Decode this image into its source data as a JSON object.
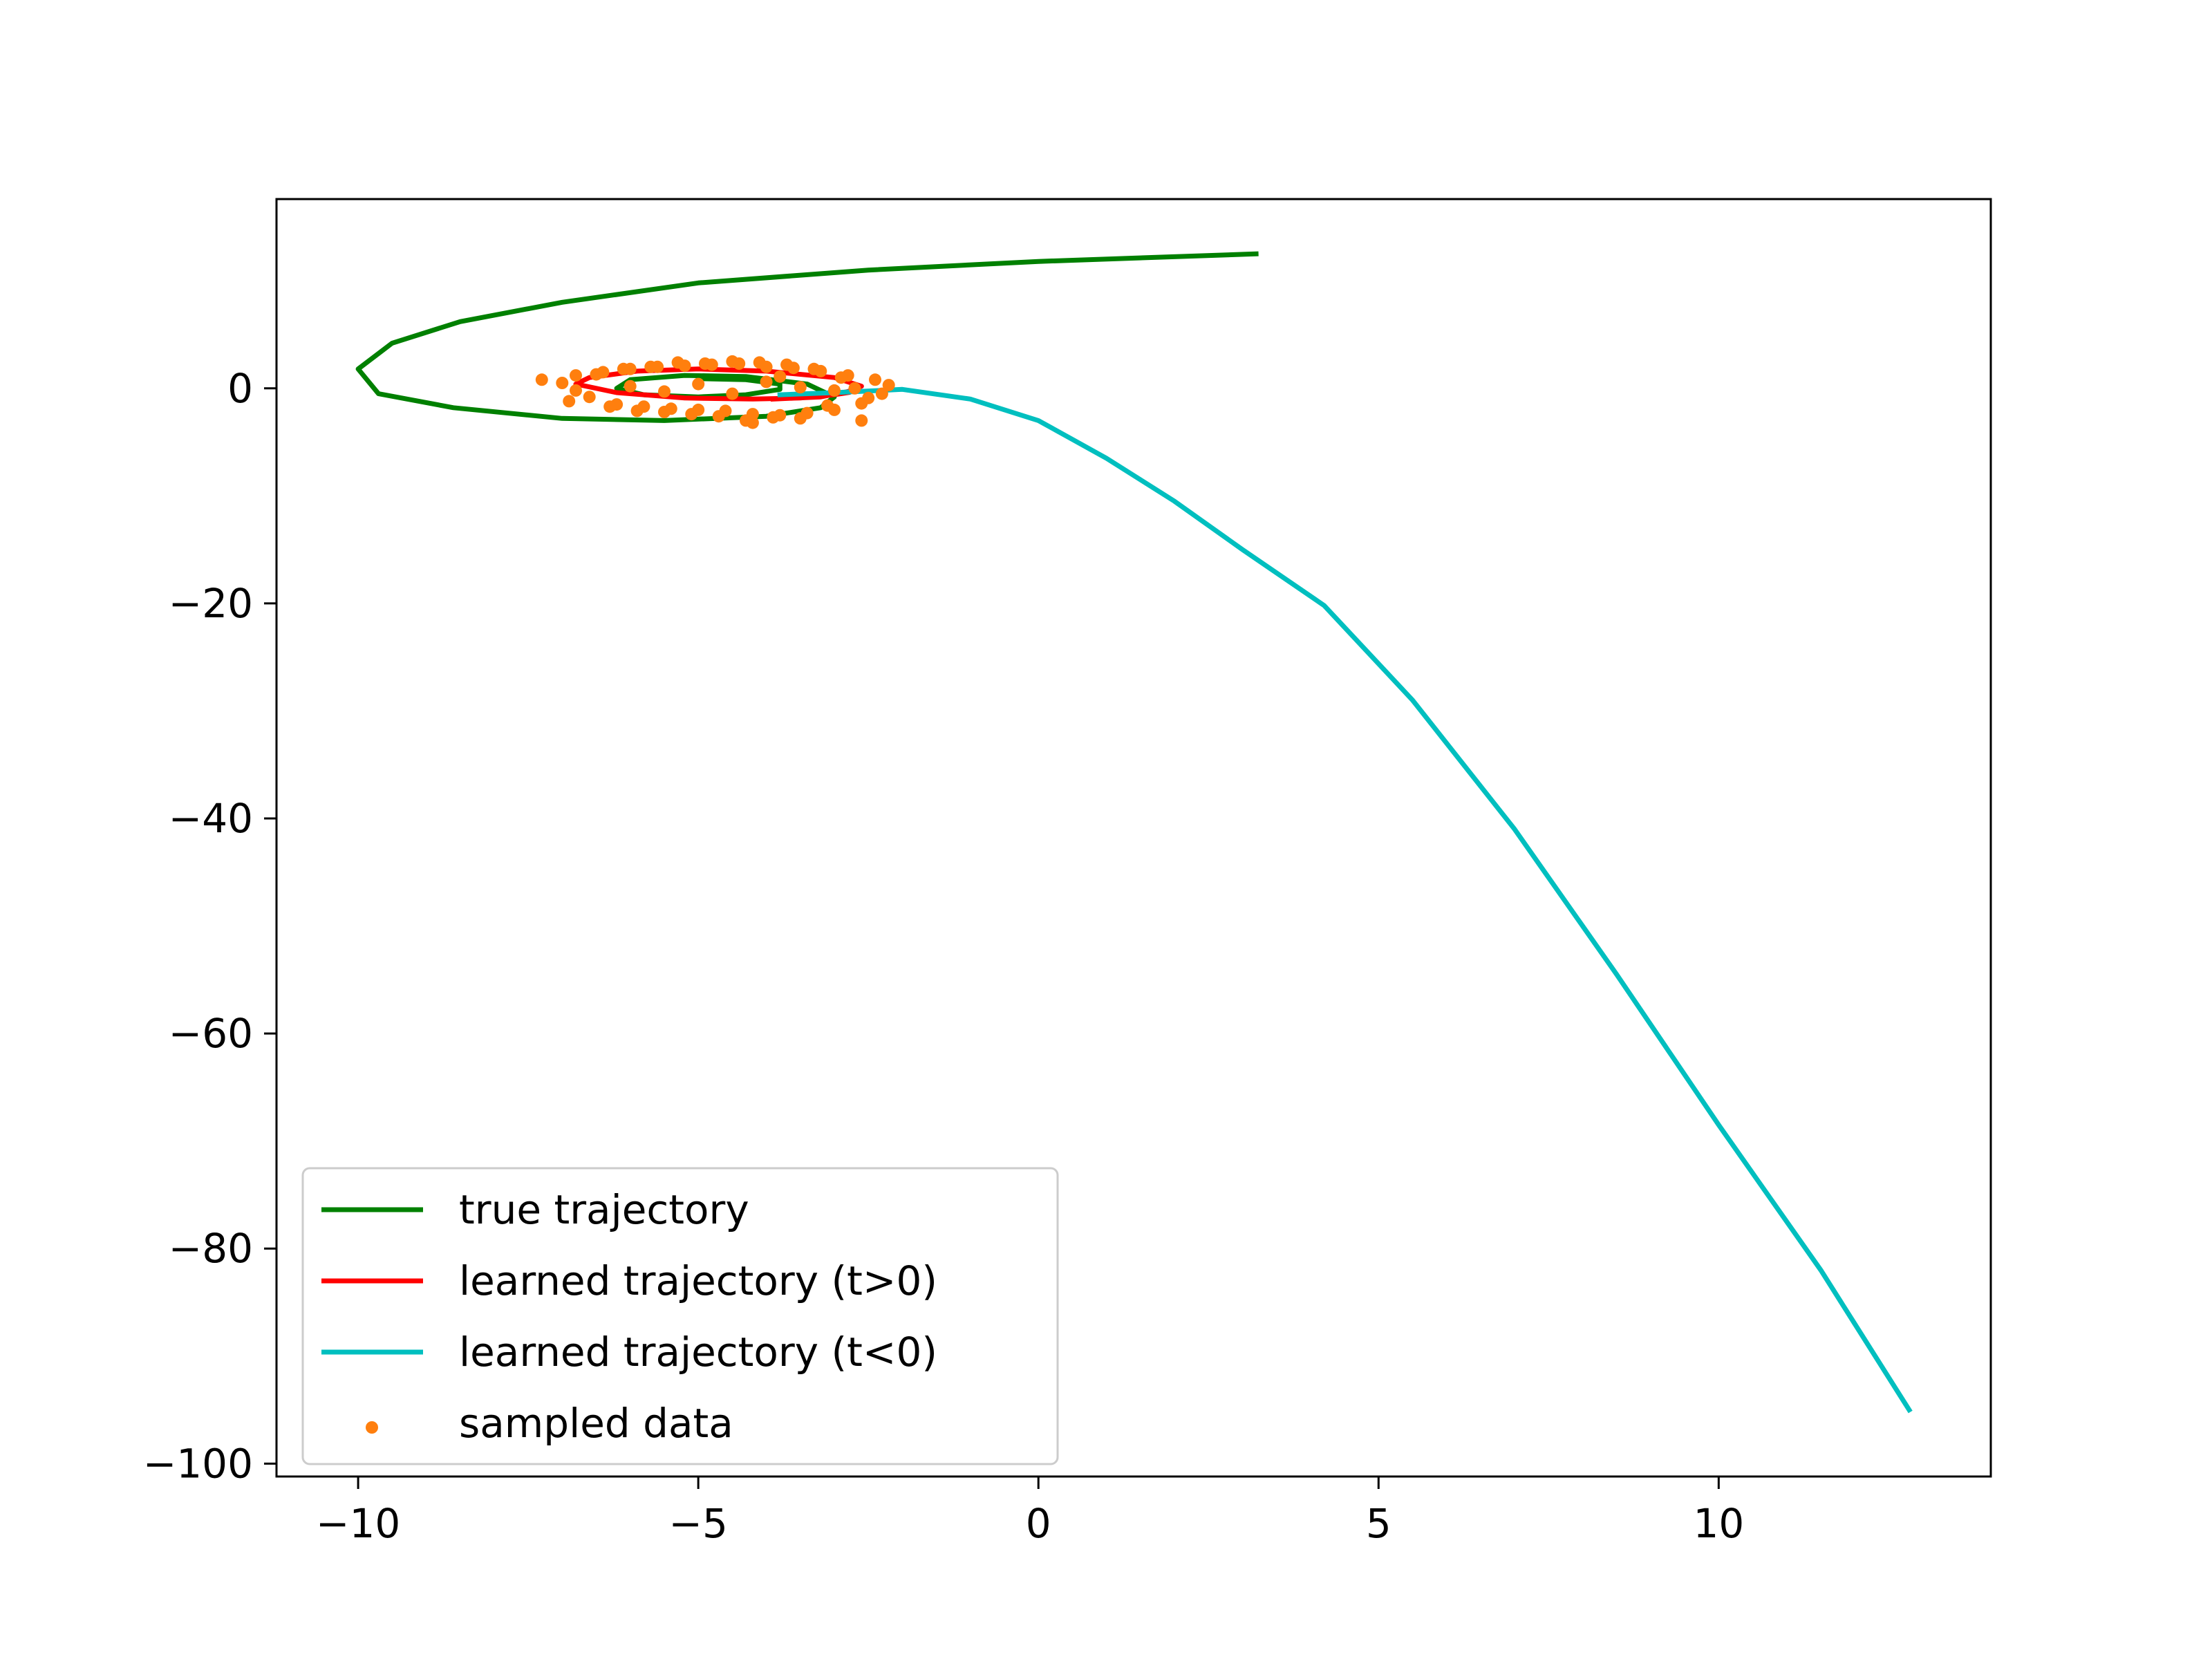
{
  "chart_data": {
    "type": "line",
    "title": "",
    "xlabel": "",
    "ylabel": "",
    "xlim": [
      -11.2,
      14.0
    ],
    "ylim": [
      -101.2,
      17.6
    ],
    "xticks": [
      -10,
      -5,
      0,
      5,
      10
    ],
    "yticks": [
      0,
      -20,
      -40,
      -60,
      -80,
      -100
    ],
    "xtick_labels": [
      "−10",
      "−5",
      "0",
      "5",
      "10"
    ],
    "ytick_labels": [
      "0",
      "−20",
      "−40",
      "−60",
      "−80",
      "−100"
    ],
    "grid": false,
    "legend_position": "lower-left",
    "series": [
      {
        "name": "true trajectory",
        "kind": "line",
        "color": "#008000",
        "x": [
          3.2,
          0.0,
          -2.5,
          -5.0,
          -7.0,
          -8.5,
          -9.5,
          -10.0,
          -9.7,
          -8.6,
          -7.0,
          -5.5,
          -4.0,
          -3.2,
          -3.0,
          -3.4,
          -4.3,
          -5.2,
          -6.0,
          -6.2,
          -5.8,
          -5.0,
          -4.3,
          -3.8,
          -3.8,
          -4.3,
          -5.0
        ],
        "y": [
          12.5,
          11.8,
          11.0,
          9.8,
          8.0,
          6.2,
          4.2,
          1.8,
          -0.5,
          -1.8,
          -2.8,
          -3.0,
          -2.6,
          -1.8,
          -0.8,
          0.4,
          1.1,
          1.2,
          0.8,
          0.0,
          -0.6,
          -0.8,
          -0.6,
          -0.1,
          0.4,
          0.8,
          0.9
        ]
      },
      {
        "name": "learned trajectory (t>0)",
        "kind": "line",
        "color": "#ff0000",
        "x": [
          -3.9,
          -3.2,
          -2.8,
          -2.6,
          -3.0,
          -4.0,
          -5.0,
          -5.9,
          -6.6,
          -6.8,
          -6.2,
          -5.2,
          -4.2,
          -3.5,
          -3.0,
          -2.8
        ],
        "y": [
          -1.0,
          -0.8,
          -0.3,
          0.2,
          1.0,
          1.6,
          1.8,
          1.6,
          1.0,
          0.4,
          -0.4,
          -0.9,
          -1.0,
          -0.9,
          -0.6,
          -0.4
        ]
      },
      {
        "name": "learned trajectory (t<0)",
        "kind": "line",
        "color": "#00bfbf",
        "x": [
          -3.8,
          -3.0,
          -2.0,
          -1.0,
          0.0,
          1.0,
          2.0,
          3.0,
          4.2,
          5.5,
          7.0,
          8.5,
          10.0,
          11.5,
          12.8
        ],
        "y": [
          -0.6,
          -0.4,
          -0.1,
          -1.0,
          -3.0,
          -6.5,
          -10.5,
          -15.0,
          -20.2,
          -29.0,
          -41.0,
          -54.5,
          -68.5,
          -82.0,
          -95.0
        ]
      },
      {
        "name": "sampled data",
        "kind": "scatter",
        "color": "#ff7f0e",
        "x": [
          -7.3,
          -7.0,
          -6.8,
          -6.6,
          -6.8,
          -6.9,
          -6.4,
          -6.2,
          -6.0,
          -5.8,
          -5.6,
          -5.4,
          -5.2,
          -5.0,
          -4.8,
          -4.6,
          -4.4,
          -4.2,
          -4.0,
          -3.8,
          -3.6,
          -3.4,
          -3.2,
          -3.0,
          -2.8,
          -2.6,
          -2.4,
          -2.2,
          -2.3,
          -2.5,
          -2.7,
          -2.9,
          -3.1,
          -3.3,
          -3.5,
          -3.7,
          -3.9,
          -4.1,
          -4.3,
          -4.5,
          -4.7,
          -4.9,
          -5.1,
          -5.3,
          -5.5,
          -5.7,
          -5.9,
          -6.1,
          -6.3,
          -6.5,
          -6.0,
          -5.5,
          -5.0,
          -4.5,
          -4.0,
          -3.5,
          -3.0,
          -2.6,
          -4.2,
          -3.8
        ],
        "y": [
          0.8,
          0.5,
          -0.2,
          -0.8,
          1.2,
          -1.2,
          1.5,
          -1.5,
          1.8,
          -1.7,
          2.0,
          -1.9,
          2.1,
          -2.0,
          2.2,
          -2.1,
          2.3,
          -2.4,
          2.0,
          -2.5,
          1.9,
          -2.3,
          1.6,
          -2.0,
          1.2,
          -1.4,
          0.8,
          0.3,
          -0.5,
          -0.9,
          0.0,
          1.0,
          -1.6,
          1.8,
          -2.8,
          2.2,
          -2.7,
          2.4,
          -3.0,
          2.5,
          -2.6,
          2.3,
          -2.4,
          2.4,
          -2.2,
          2.0,
          -2.1,
          1.8,
          -1.7,
          1.3,
          0.2,
          -0.3,
          0.4,
          -0.5,
          0.6,
          0.1,
          -0.2,
          -3.0,
          -3.2,
          1.1
        ]
      }
    ]
  }
}
